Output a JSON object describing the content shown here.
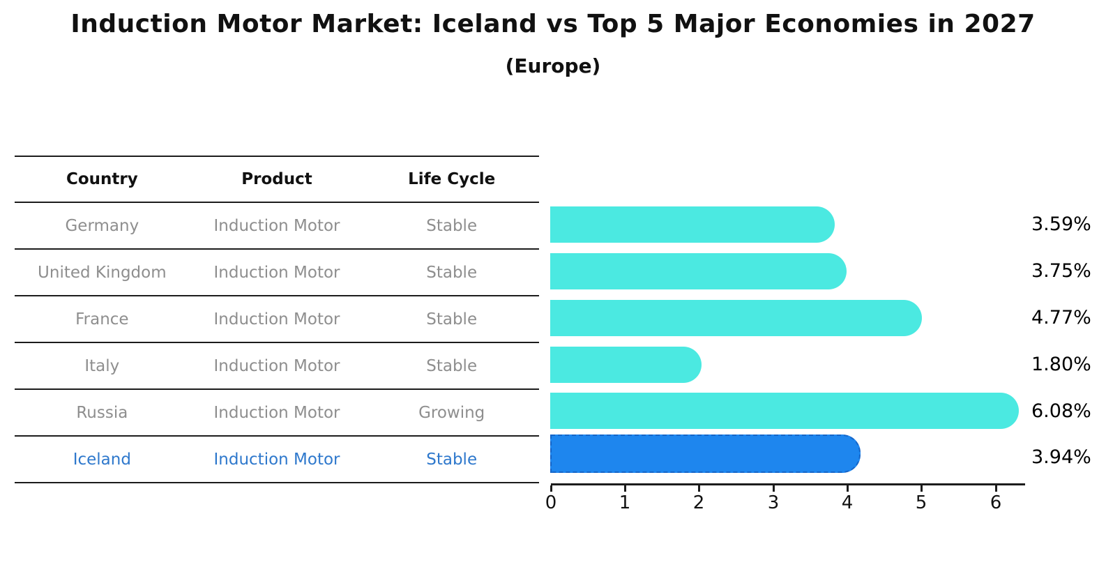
{
  "title": "Induction Motor Market: Iceland vs Top 5 Major Economies in 2027",
  "subtitle": "(Europe)",
  "table": {
    "headers": [
      "Country",
      "Product",
      "Life Cycle"
    ],
    "rows": [
      {
        "country": "Germany",
        "product": "Induction Motor",
        "life_cycle": "Stable",
        "highlight": false
      },
      {
        "country": "United Kingdom",
        "product": "Induction Motor",
        "life_cycle": "Stable",
        "highlight": false
      },
      {
        "country": "France",
        "product": "Induction Motor",
        "life_cycle": "Stable",
        "highlight": false
      },
      {
        "country": "Italy",
        "product": "Induction Motor",
        "life_cycle": "Stable",
        "highlight": false
      },
      {
        "country": "Russia",
        "product": "Induction Motor",
        "life_cycle": "Growing",
        "highlight": false
      },
      {
        "country": "Iceland",
        "product": "Induction Motor",
        "life_cycle": "Stable",
        "highlight": true
      }
    ]
  },
  "chart_data": {
    "type": "bar",
    "orientation": "horizontal",
    "title": "Induction Motor Market: Iceland vs Top 5 Major Economies in 2027",
    "subtitle": "(Europe)",
    "categories": [
      "Germany",
      "United Kingdom",
      "France",
      "Italy",
      "Russia",
      "Iceland"
    ],
    "values": [
      3.59,
      3.75,
      4.77,
      1.8,
      6.08,
      3.94
    ],
    "value_labels": [
      "3.59%",
      "3.75%",
      "4.77%",
      "1.80%",
      "6.08%",
      "3.94%"
    ],
    "x_ticks": [
      0,
      1,
      2,
      3,
      4,
      5,
      6
    ],
    "xlim": [
      0,
      6.4
    ],
    "grid": false,
    "legend": "none",
    "bar_color": "#4BE9E1",
    "highlight_index": 5,
    "highlight_color": "#1E86EE",
    "highlight_border_color": "#1565C8"
  },
  "colors": {
    "highlight_text": "#2E78CC",
    "line": "#1C1C1C",
    "muted_text": "#8E8E8E"
  }
}
